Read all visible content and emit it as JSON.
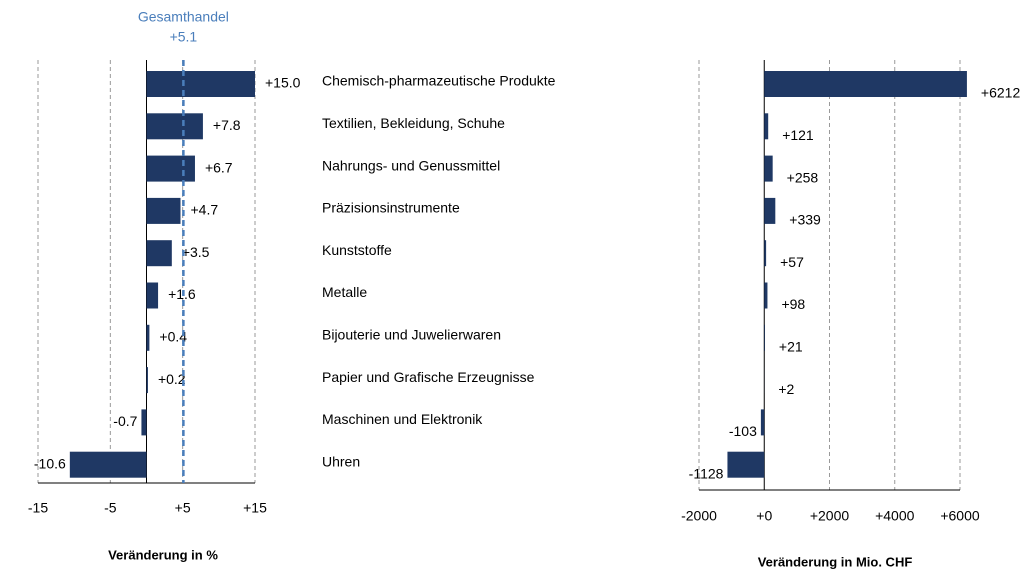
{
  "chart_data": [
    {
      "type": "hbar",
      "xlabel": "Veränderung in %",
      "categories": [
        "Chemisch-pharmazeutische Produkte",
        "Textilien, Bekleidung, Schuhe",
        "Nahrungs- und Genussmittel",
        "Präzisionsinstrumente",
        "Kunststoffe",
        "Metalle",
        "Bijouterie und Juwelierwaren",
        "Papier und Grafische Erzeugnisse",
        "Maschinen und Elektronik",
        "Uhren"
      ],
      "values": [
        15.0,
        7.8,
        6.7,
        4.7,
        3.5,
        1.6,
        0.4,
        0.2,
        -0.7,
        -10.6
      ],
      "value_labels": [
        "+15.0",
        "+7.8",
        "+6.7",
        "+4.7",
        "+3.5",
        "+1.6",
        "+0.4",
        "+0.2",
        "-0.7",
        "-10.6"
      ],
      "color": "#1f3864",
      "xlim": [
        -15,
        15
      ],
      "xticks": [
        -15,
        -5,
        {
          "value": 5,
          "label": "+5"
        },
        {
          "value": 15,
          "label": "+15"
        }
      ],
      "grid": true,
      "reference_line": {
        "label": "Gesamthandel",
        "value": 5.1,
        "value_label": "+5.1",
        "color": "#4a7ebb"
      }
    },
    {
      "type": "hbar",
      "xlabel": "Veränderung in Mio. CHF",
      "values": [
        6212,
        121,
        258,
        339,
        57,
        98,
        21,
        2,
        -103,
        -1128
      ],
      "value_labels": [
        "+6212",
        "+121",
        "+258",
        "+339",
        "+57",
        "+98",
        "+21",
        "+2",
        "-103",
        "-1128"
      ],
      "color": "#1f3864",
      "xlim": [
        -2000,
        6000
      ],
      "xticks": [
        -2000,
        {
          "value": 0,
          "label": "+0"
        },
        {
          "value": 2000,
          "label": "+2000"
        },
        {
          "value": 4000,
          "label": "+4000"
        },
        {
          "value": 6000,
          "label": "+6000"
        }
      ],
      "grid": true
    }
  ]
}
